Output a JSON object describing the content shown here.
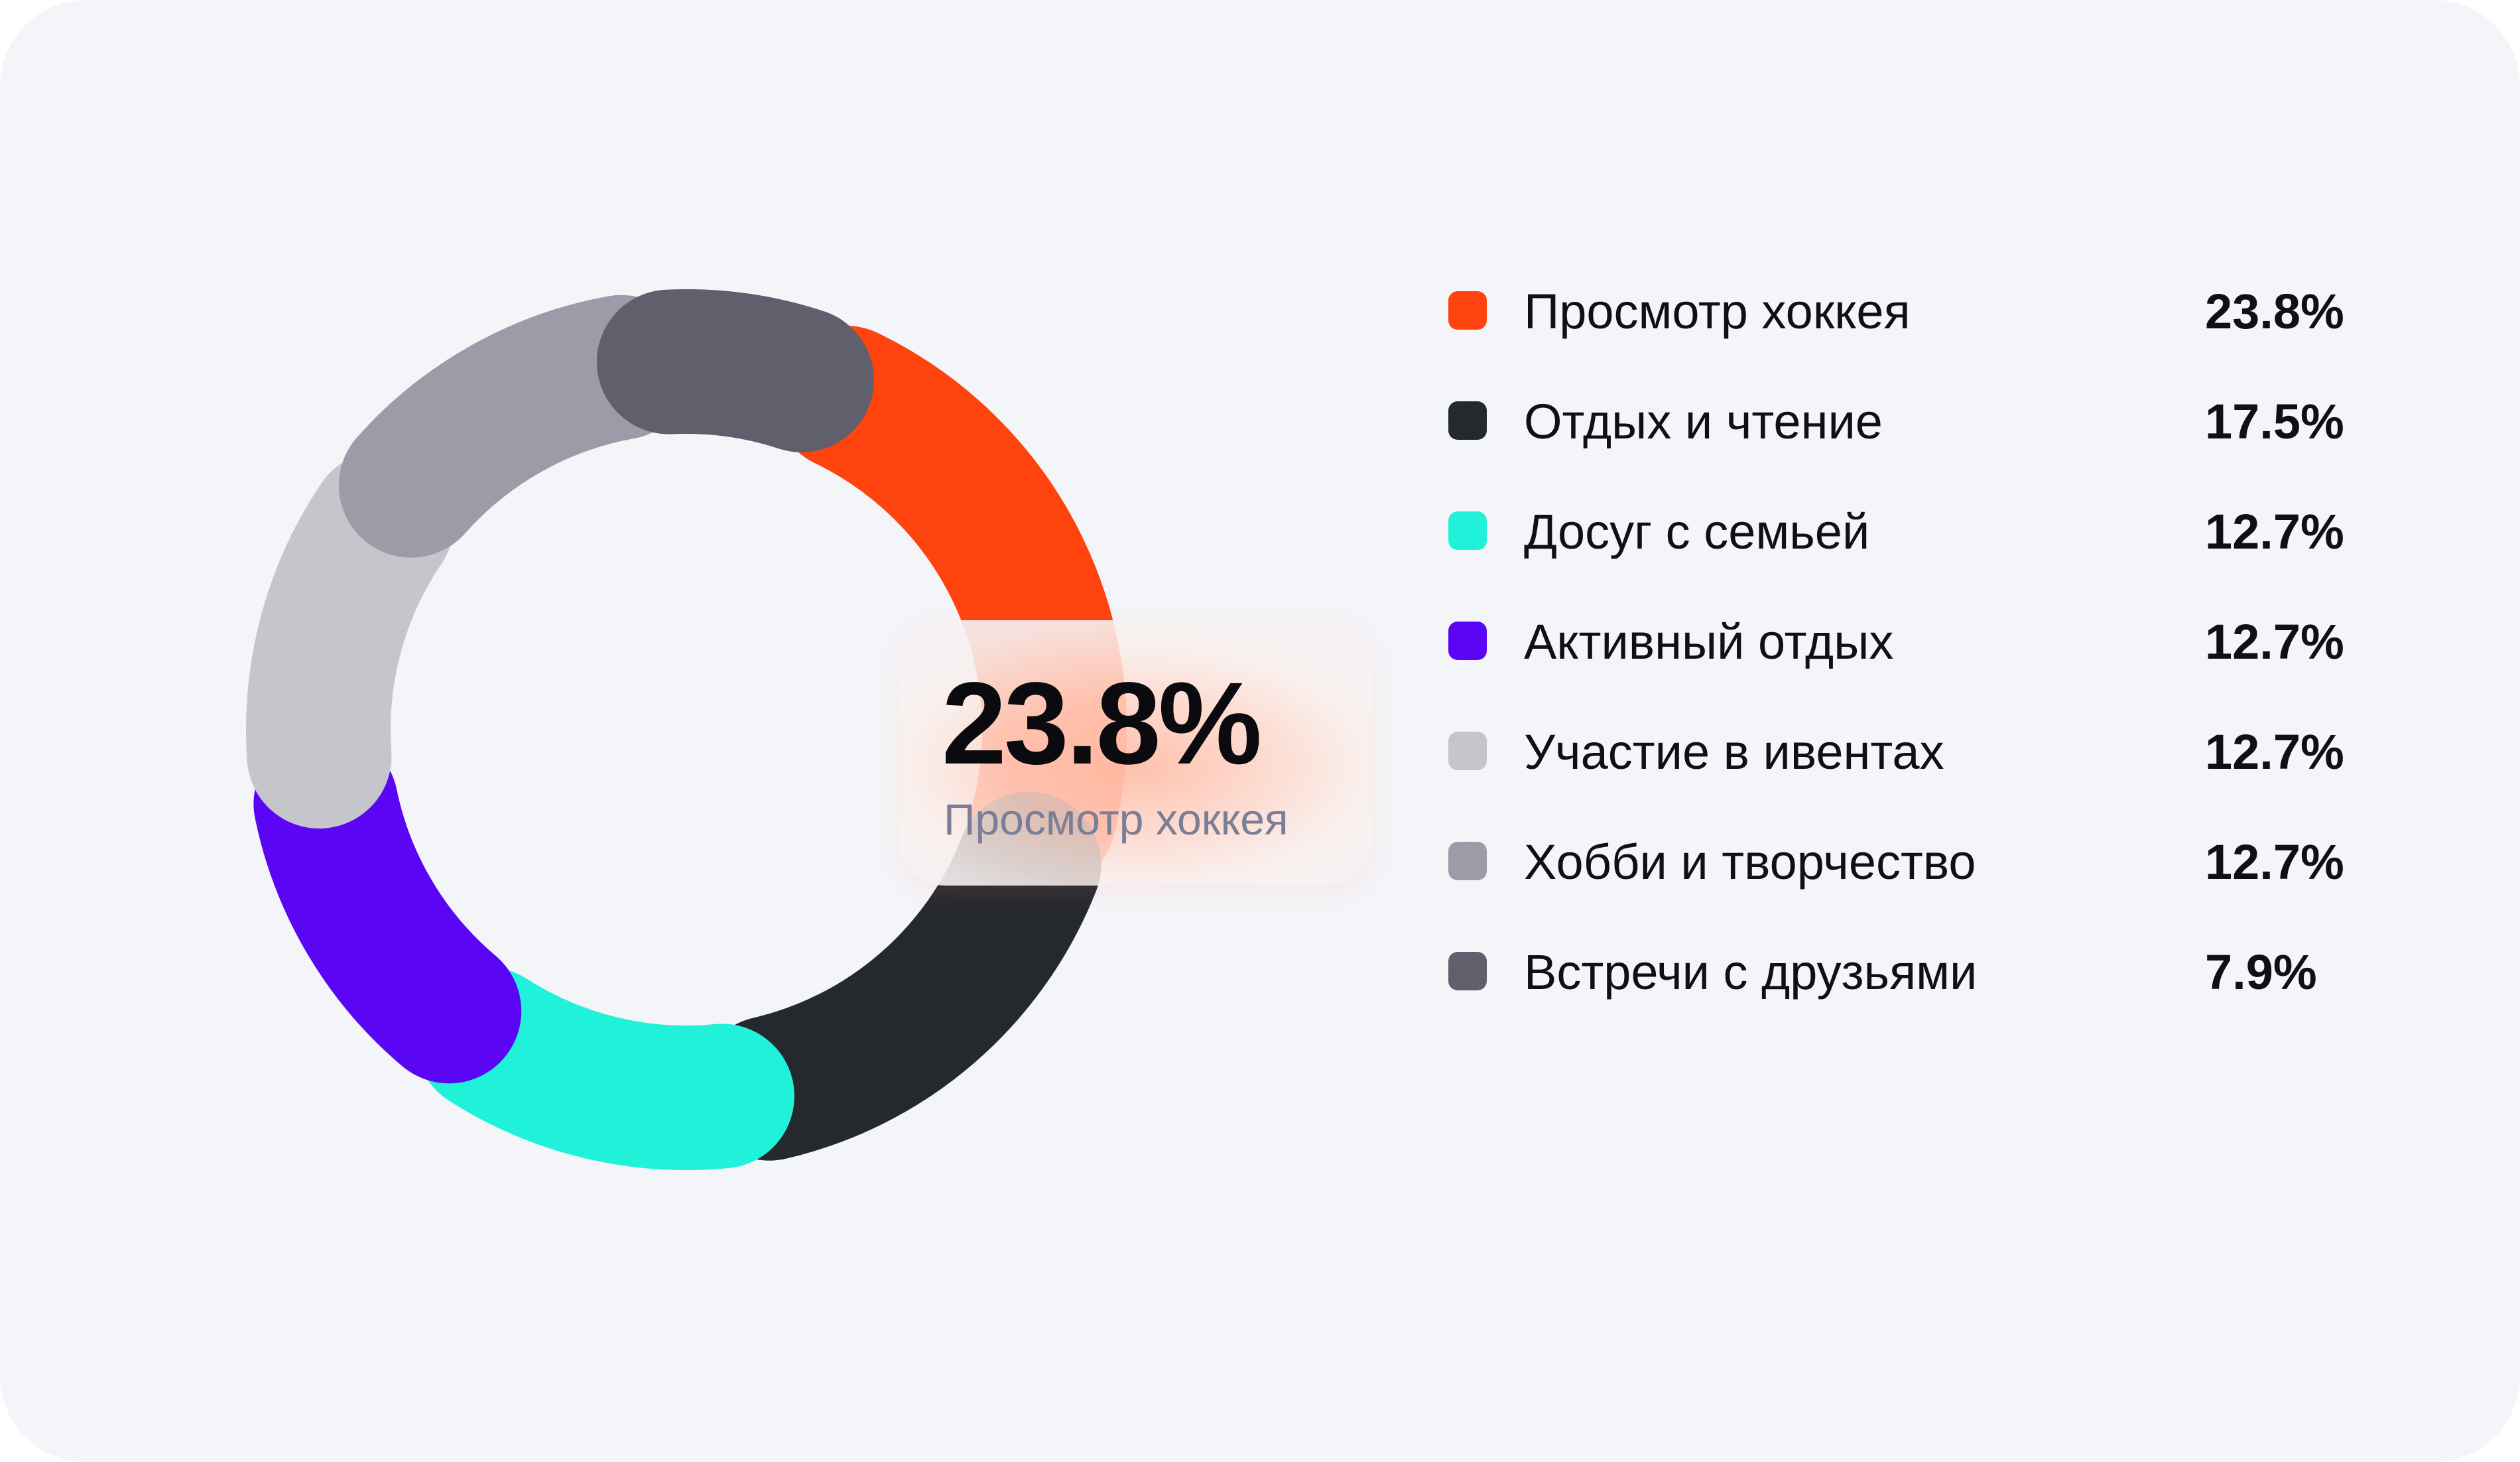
{
  "chart_data": {
    "type": "pie",
    "variant": "donut",
    "highlighted": {
      "value_label": "23.8%",
      "category": "Просмотр хоккея"
    },
    "segments": [
      {
        "name": "Просмотр хоккея",
        "value": 23.8,
        "value_label": "23.8%",
        "color": "#ff430f"
      },
      {
        "name": "Отдых и чтение",
        "value": 17.5,
        "value_label": "17.5%",
        "color": "#25292e"
      },
      {
        "name": "Досуг с семьей",
        "value": 12.7,
        "value_label": "12.7%",
        "color": "#1ff2d9"
      },
      {
        "name": "Активный отдых",
        "value": 12.7,
        "value_label": "12.7%",
        "color": "#5b05f5"
      },
      {
        "name": "Участие в ивентах",
        "value": 12.7,
        "value_label": "12.7%",
        "color": "#c4c6cc"
      },
      {
        "name": "Хобби и творчество",
        "value": 12.7,
        "value_label": "12.7%",
        "color": "#9b9ca7"
      },
      {
        "name": "Встречи с друзьями",
        "value": 7.9,
        "value_label": "7.9%",
        "color": "#5f606c"
      }
    ],
    "legend_position": "right"
  }
}
